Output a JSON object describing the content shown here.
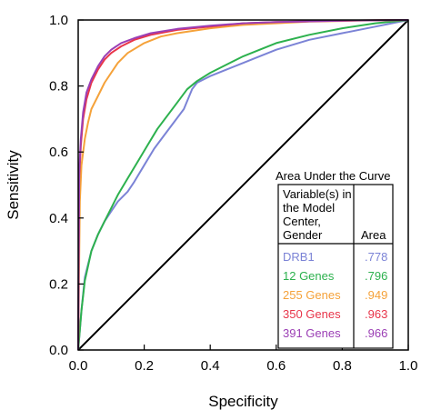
{
  "chart_data": {
    "type": "line",
    "title": "",
    "xlabel": "Specificity",
    "ylabel": "Sensitivity",
    "xlim": [
      0,
      1
    ],
    "ylim": [
      0,
      1
    ],
    "x_ticks": [
      "0.0",
      "0.2",
      "0.4",
      "0.6",
      "0.8",
      "1.0"
    ],
    "y_ticks": [
      "0.0",
      "0.2",
      "0.4",
      "0.6",
      "0.8",
      "1.0"
    ],
    "grid": false,
    "legend": {
      "title": "Area Under the Curve",
      "col1_header": [
        "Variable(s) in",
        "the Model",
        "Center,",
        "Gender"
      ],
      "col2_header": "Area",
      "placement": "bottom-right"
    },
    "series": [
      {
        "name": "DRB1",
        "area": ".778",
        "color": "#7b83d6",
        "points": [
          [
            0,
            0
          ],
          [
            0.01,
            0.12
          ],
          [
            0.02,
            0.22
          ],
          [
            0.04,
            0.3
          ],
          [
            0.06,
            0.35
          ],
          [
            0.08,
            0.39
          ],
          [
            0.1,
            0.42
          ],
          [
            0.12,
            0.45
          ],
          [
            0.15,
            0.48
          ],
          [
            0.17,
            0.51
          ],
          [
            0.2,
            0.56
          ],
          [
            0.23,
            0.61
          ],
          [
            0.26,
            0.65
          ],
          [
            0.29,
            0.69
          ],
          [
            0.32,
            0.73
          ],
          [
            0.345,
            0.79
          ],
          [
            0.36,
            0.81
          ],
          [
            0.4,
            0.83
          ],
          [
            0.45,
            0.85
          ],
          [
            0.5,
            0.87
          ],
          [
            0.55,
            0.89
          ],
          [
            0.6,
            0.91
          ],
          [
            0.7,
            0.94
          ],
          [
            0.8,
            0.96
          ],
          [
            0.9,
            0.98
          ],
          [
            1,
            1
          ]
        ]
      },
      {
        "name": "12 Genes",
        "area": ".796",
        "color": "#2db14e",
        "points": [
          [
            0,
            0
          ],
          [
            0.01,
            0.12
          ],
          [
            0.02,
            0.21
          ],
          [
            0.04,
            0.3
          ],
          [
            0.06,
            0.35
          ],
          [
            0.08,
            0.39
          ],
          [
            0.1,
            0.43
          ],
          [
            0.12,
            0.47
          ],
          [
            0.15,
            0.52
          ],
          [
            0.18,
            0.57
          ],
          [
            0.21,
            0.62
          ],
          [
            0.24,
            0.67
          ],
          [
            0.27,
            0.71
          ],
          [
            0.3,
            0.75
          ],
          [
            0.33,
            0.79
          ],
          [
            0.36,
            0.815
          ],
          [
            0.4,
            0.84
          ],
          [
            0.45,
            0.865
          ],
          [
            0.5,
            0.89
          ],
          [
            0.55,
            0.91
          ],
          [
            0.6,
            0.93
          ],
          [
            0.7,
            0.955
          ],
          [
            0.8,
            0.975
          ],
          [
            0.9,
            0.99
          ],
          [
            1,
            1
          ]
        ]
      },
      {
        "name": "255 Genes",
        "area": ".949",
        "color": "#f5a23a",
        "points": [
          [
            0,
            0
          ],
          [
            0.005,
            0.45
          ],
          [
            0.01,
            0.56
          ],
          [
            0.02,
            0.64
          ],
          [
            0.03,
            0.69
          ],
          [
            0.04,
            0.73
          ],
          [
            0.06,
            0.77
          ],
          [
            0.08,
            0.81
          ],
          [
            0.1,
            0.84
          ],
          [
            0.12,
            0.87
          ],
          [
            0.15,
            0.9
          ],
          [
            0.2,
            0.93
          ],
          [
            0.25,
            0.95
          ],
          [
            0.3,
            0.96
          ],
          [
            0.4,
            0.975
          ],
          [
            0.5,
            0.985
          ],
          [
            0.6,
            0.99
          ],
          [
            0.7,
            0.995
          ],
          [
            0.8,
            0.997
          ],
          [
            0.9,
            0.999
          ],
          [
            1,
            1
          ]
        ]
      },
      {
        "name": "350 Genes",
        "area": ".963",
        "color": "#e8354a",
        "points": [
          [
            0,
            0
          ],
          [
            0.003,
            0.52
          ],
          [
            0.008,
            0.62
          ],
          [
            0.015,
            0.7
          ],
          [
            0.025,
            0.76
          ],
          [
            0.04,
            0.81
          ],
          [
            0.06,
            0.85
          ],
          [
            0.08,
            0.88
          ],
          [
            0.1,
            0.9
          ],
          [
            0.13,
            0.92
          ],
          [
            0.17,
            0.94
          ],
          [
            0.22,
            0.955
          ],
          [
            0.3,
            0.97
          ],
          [
            0.4,
            0.98
          ],
          [
            0.5,
            0.99
          ],
          [
            0.6,
            0.994
          ],
          [
            0.7,
            0.996
          ],
          [
            0.8,
            0.998
          ],
          [
            1,
            1
          ]
        ]
      },
      {
        "name": "391 Genes",
        "area": ".966",
        "color": "#9b3fb5",
        "points": [
          [
            0,
            0
          ],
          [
            0.003,
            0.54
          ],
          [
            0.008,
            0.64
          ],
          [
            0.015,
            0.72
          ],
          [
            0.025,
            0.78
          ],
          [
            0.04,
            0.82
          ],
          [
            0.06,
            0.86
          ],
          [
            0.08,
            0.89
          ],
          [
            0.1,
            0.91
          ],
          [
            0.13,
            0.93
          ],
          [
            0.17,
            0.945
          ],
          [
            0.22,
            0.96
          ],
          [
            0.3,
            0.973
          ],
          [
            0.4,
            0.983
          ],
          [
            0.5,
            0.99
          ],
          [
            0.6,
            0.994
          ],
          [
            0.7,
            0.996
          ],
          [
            0.8,
            0.998
          ],
          [
            1,
            1
          ]
        ]
      }
    ],
    "reference_line": [
      [
        0,
        0
      ],
      [
        1,
        1
      ]
    ]
  }
}
